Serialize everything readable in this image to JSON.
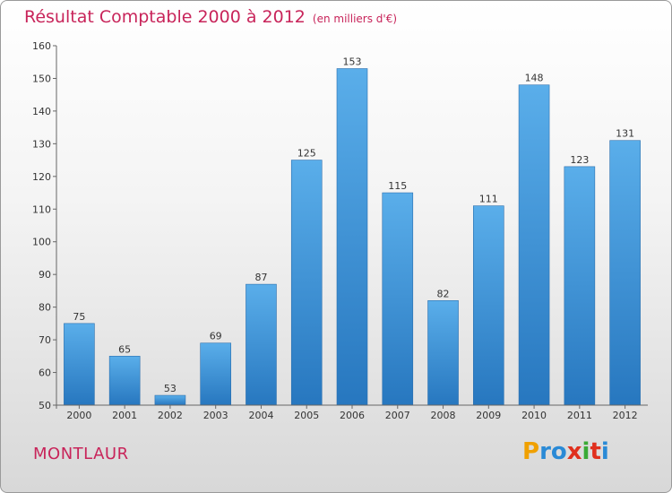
{
  "header": {
    "title": "Résultat Comptable 2000 à 2012",
    "unit": "(en milliers d'€)"
  },
  "town": "MONTLAUR",
  "logo": {
    "letters": [
      "P",
      "r",
      "o",
      "x",
      "i",
      "t",
      "i"
    ],
    "colors": [
      "#f0a000",
      "#2a8ad6",
      "#2a8ad6",
      "#e0301e",
      "#3aaa35",
      "#e0301e",
      "#2a8ad6"
    ]
  },
  "chart_data": {
    "type": "bar",
    "title": "Résultat Comptable 2000 à 2012",
    "unit": "(en milliers d'€)",
    "categories": [
      "2000",
      "2001",
      "2002",
      "2003",
      "2004",
      "2005",
      "2006",
      "2007",
      "2008",
      "2009",
      "2010",
      "2011",
      "2012"
    ],
    "values": [
      75,
      65,
      53,
      69,
      87,
      125,
      153,
      115,
      82,
      111,
      148,
      123,
      131
    ],
    "ylim": [
      50,
      160
    ],
    "yticks": [
      50,
      60,
      70,
      80,
      90,
      100,
      110,
      120,
      130,
      140,
      150,
      160
    ],
    "bar_color": "#3f95db",
    "grid": false,
    "legend": "none"
  }
}
